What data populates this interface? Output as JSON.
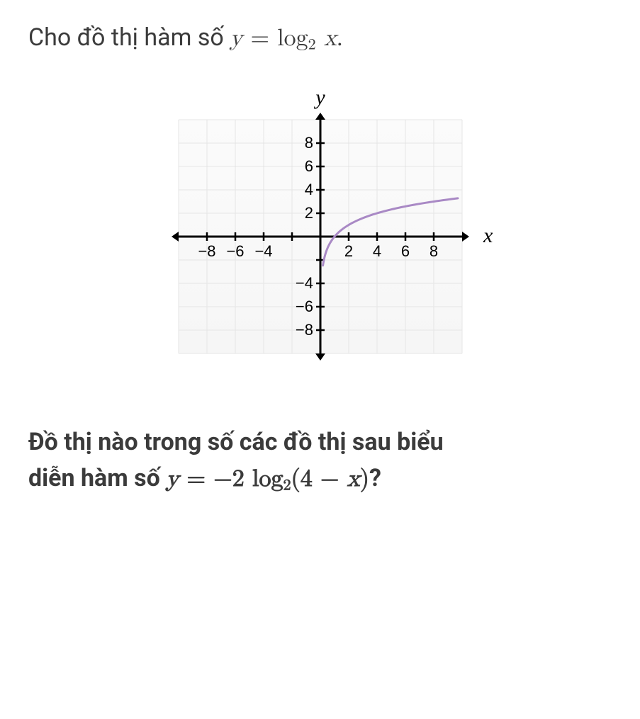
{
  "intro": {
    "prefix": "Cho đồ thị hàm số ",
    "y": "y",
    "eq": " = ",
    "log": "log",
    "logsub": "2",
    "space": " ",
    "x": "x",
    "period": "."
  },
  "chart": {
    "type": "line",
    "title_y": "y",
    "title_x": "x",
    "xlim": [
      -10,
      10
    ],
    "ylim": [
      -10,
      10
    ],
    "tick_step": 2,
    "x_tick_labels": [
      "-8",
      "-6",
      "-4",
      "",
      "",
      "2",
      "4",
      "6",
      "8"
    ],
    "y_tick_labels_pos": [
      "2",
      "4",
      "6",
      "8"
    ],
    "y_tick_labels_neg": [
      "-4",
      "-6",
      "-8"
    ],
    "grid_color": "#e5e5e5",
    "plot_bg_top": "#fbfbfb",
    "plot_bg_bottom": "#f6f6f6",
    "axis_color": "#000000",
    "tick_fontsize": 22,
    "axis_label_fontsize": 30,
    "curve_color": "#a989c5",
    "curve_width": 3,
    "curve_points": [
      [
        0.2,
        -2.32
      ],
      [
        0.25,
        -2.0
      ],
      [
        0.36,
        -1.47
      ],
      [
        0.5,
        -1.0
      ],
      [
        0.7,
        -0.51
      ],
      [
        1.0,
        0.0
      ],
      [
        1.4,
        0.49
      ],
      [
        2.0,
        1.0
      ],
      [
        2.8,
        1.49
      ],
      [
        4.0,
        2.0
      ],
      [
        5.6,
        2.49
      ],
      [
        8.0,
        3.0
      ],
      [
        9.5,
        3.25
      ]
    ]
  },
  "question": {
    "line1": "Đồ thị nào trong số các đồ thị sau biểu",
    "line2_prefix": "diễn hàm số ",
    "y": "y",
    "eq": " = ",
    "neg2": "−2",
    "log": " log",
    "logsub": "2",
    "open": "(4 − ",
    "x": "x",
    "close": ")",
    "qmark": "?"
  }
}
